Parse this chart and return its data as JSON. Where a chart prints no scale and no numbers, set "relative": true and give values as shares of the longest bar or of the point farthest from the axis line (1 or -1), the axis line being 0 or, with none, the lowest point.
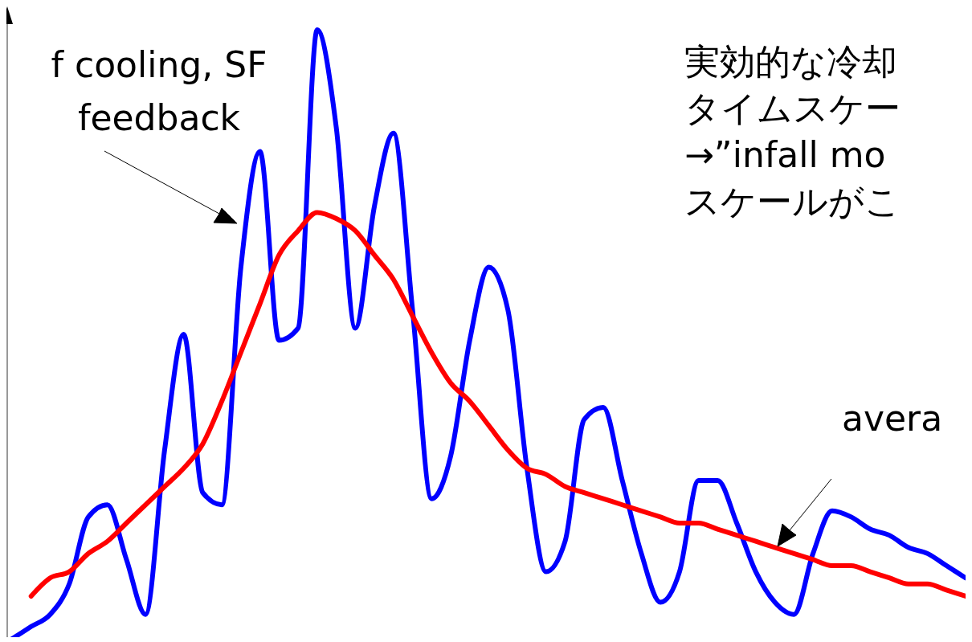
{
  "chart_data": {
    "type": "line",
    "relative": true,
    "categories": [
      null,
      null,
      null,
      null,
      null,
      null,
      null,
      null,
      null,
      null,
      null,
      null,
      null,
      null,
      null,
      null,
      null,
      null,
      null,
      null,
      null,
      null,
      null,
      null,
      null,
      null,
      null,
      null,
      null,
      null,
      null,
      null,
      null,
      null,
      null,
      null,
      null,
      null,
      null,
      null,
      null,
      null,
      null,
      null,
      null,
      null,
      null,
      null,
      null,
      null,
      null
    ],
    "series": [
      {
        "color": "#0000ff",
        "values": [
          0,
          0.02,
          0.04,
          0.09,
          0.2,
          0.22,
          0.13,
          0.04,
          0.31,
          0.5,
          0.24,
          0.22,
          0.61,
          0.8,
          0.49,
          0.51,
          1,
          0.84,
          0.51,
          0.71,
          0.83,
          0.54,
          0.23,
          0.3,
          0.49,
          0.61,
          0.54,
          0.28,
          0.11,
          0.16,
          0.36,
          0.38,
          0.26,
          0.14,
          0.06,
          0.11,
          0.26,
          0.26,
          0.19,
          0.11,
          0.06,
          0.04,
          0.14,
          0.21,
          0.2,
          0.18,
          0.17,
          0.15,
          0.14,
          0.12,
          0.1
        ]
      },
      {
        "color": "#ff0000",
        "values": [
          null,
          0.07,
          0.1,
          0.11,
          0.14,
          0.16,
          0.19,
          0.22,
          0.25,
          0.28,
          0.32,
          0.39,
          0.47,
          0.55,
          0.63,
          0.67,
          0.7,
          0.69,
          0.67,
          0.63,
          0.59,
          0.53,
          0.47,
          0.42,
          0.39,
          0.35,
          0.31,
          0.28,
          0.27,
          0.25,
          0.24,
          0.23,
          0.22,
          0.21,
          0.2,
          0.19,
          0.19,
          0.18,
          0.17,
          0.16,
          0.15,
          0.14,
          0.13,
          0.12,
          0.12,
          0.11,
          0.1,
          0.09,
          0.09,
          0.08,
          0.07
        ]
      }
    ],
    "annotations": [
      "f cooling, SF\nfeedback",
      "実効的な冷却",
      "タイムスケー",
      "→”infall mo",
      "スケールがこ",
      "avera"
    ]
  }
}
